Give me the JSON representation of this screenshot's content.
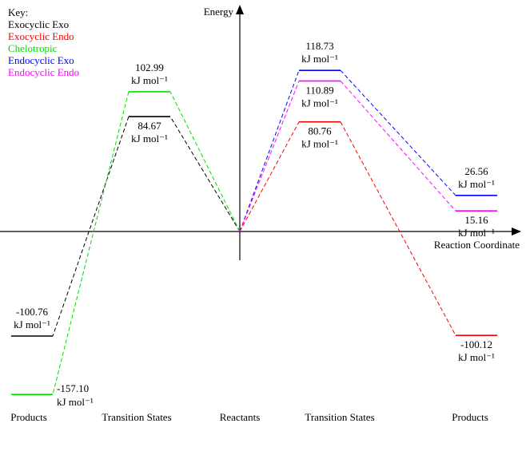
{
  "legend": {
    "title": "Key:",
    "position": "top-left"
  },
  "chart_data": {
    "type": "line",
    "subtype": "reaction-energy-profile",
    "xlabel": "Reaction Coordinate",
    "ylabel": "Energy",
    "unit": "kJ mol⁻¹",
    "x_categories": [
      "Products",
      "Transition States",
      "Reactants",
      "Transition States",
      "Products"
    ],
    "reactant_energy": 0,
    "ylim": [
      -170,
      130
    ],
    "grid": false,
    "legend_position": "top-left",
    "series": [
      {
        "name": "Exocyclic Exo",
        "color": "#000000",
        "direction": "left",
        "transition_state_kj_mol": 84.67,
        "product_kj_mol": -100.76,
        "ts_label": "84.67",
        "product_label": "-100.76",
        "ts_label_pos": "below",
        "product_label_pos": "above"
      },
      {
        "name": "Exocyclic Endo",
        "color": "#ff0000",
        "direction": "right",
        "transition_state_kj_mol": 80.76,
        "product_kj_mol": -100.12,
        "ts_label": "80.76",
        "product_label": "-100.12",
        "ts_label_pos": "below",
        "product_label_pos": "below"
      },
      {
        "name": "Chelotropic",
        "color": "#00dd00",
        "direction": "left",
        "transition_state_kj_mol": 102.99,
        "product_kj_mol": -157.1,
        "ts_label": "102.99",
        "product_label": "-157.10",
        "ts_label_pos": "above",
        "product_label_pos": "right"
      },
      {
        "name": "Endocyclic Exo",
        "color": "#0000ff",
        "direction": "right",
        "transition_state_kj_mol": 118.73,
        "product_kj_mol": 26.56,
        "ts_label": "118.73",
        "product_label": "26.56",
        "ts_label_pos": "above",
        "product_label_pos": "above"
      },
      {
        "name": "Endocyclic Endo",
        "color": "#ff00ff",
        "direction": "right",
        "transition_state_kj_mol": 110.89,
        "product_kj_mol": 15.16,
        "ts_label": "110.89",
        "product_label": "15.16",
        "ts_label_pos": "below",
        "product_label_pos": "below"
      }
    ]
  }
}
